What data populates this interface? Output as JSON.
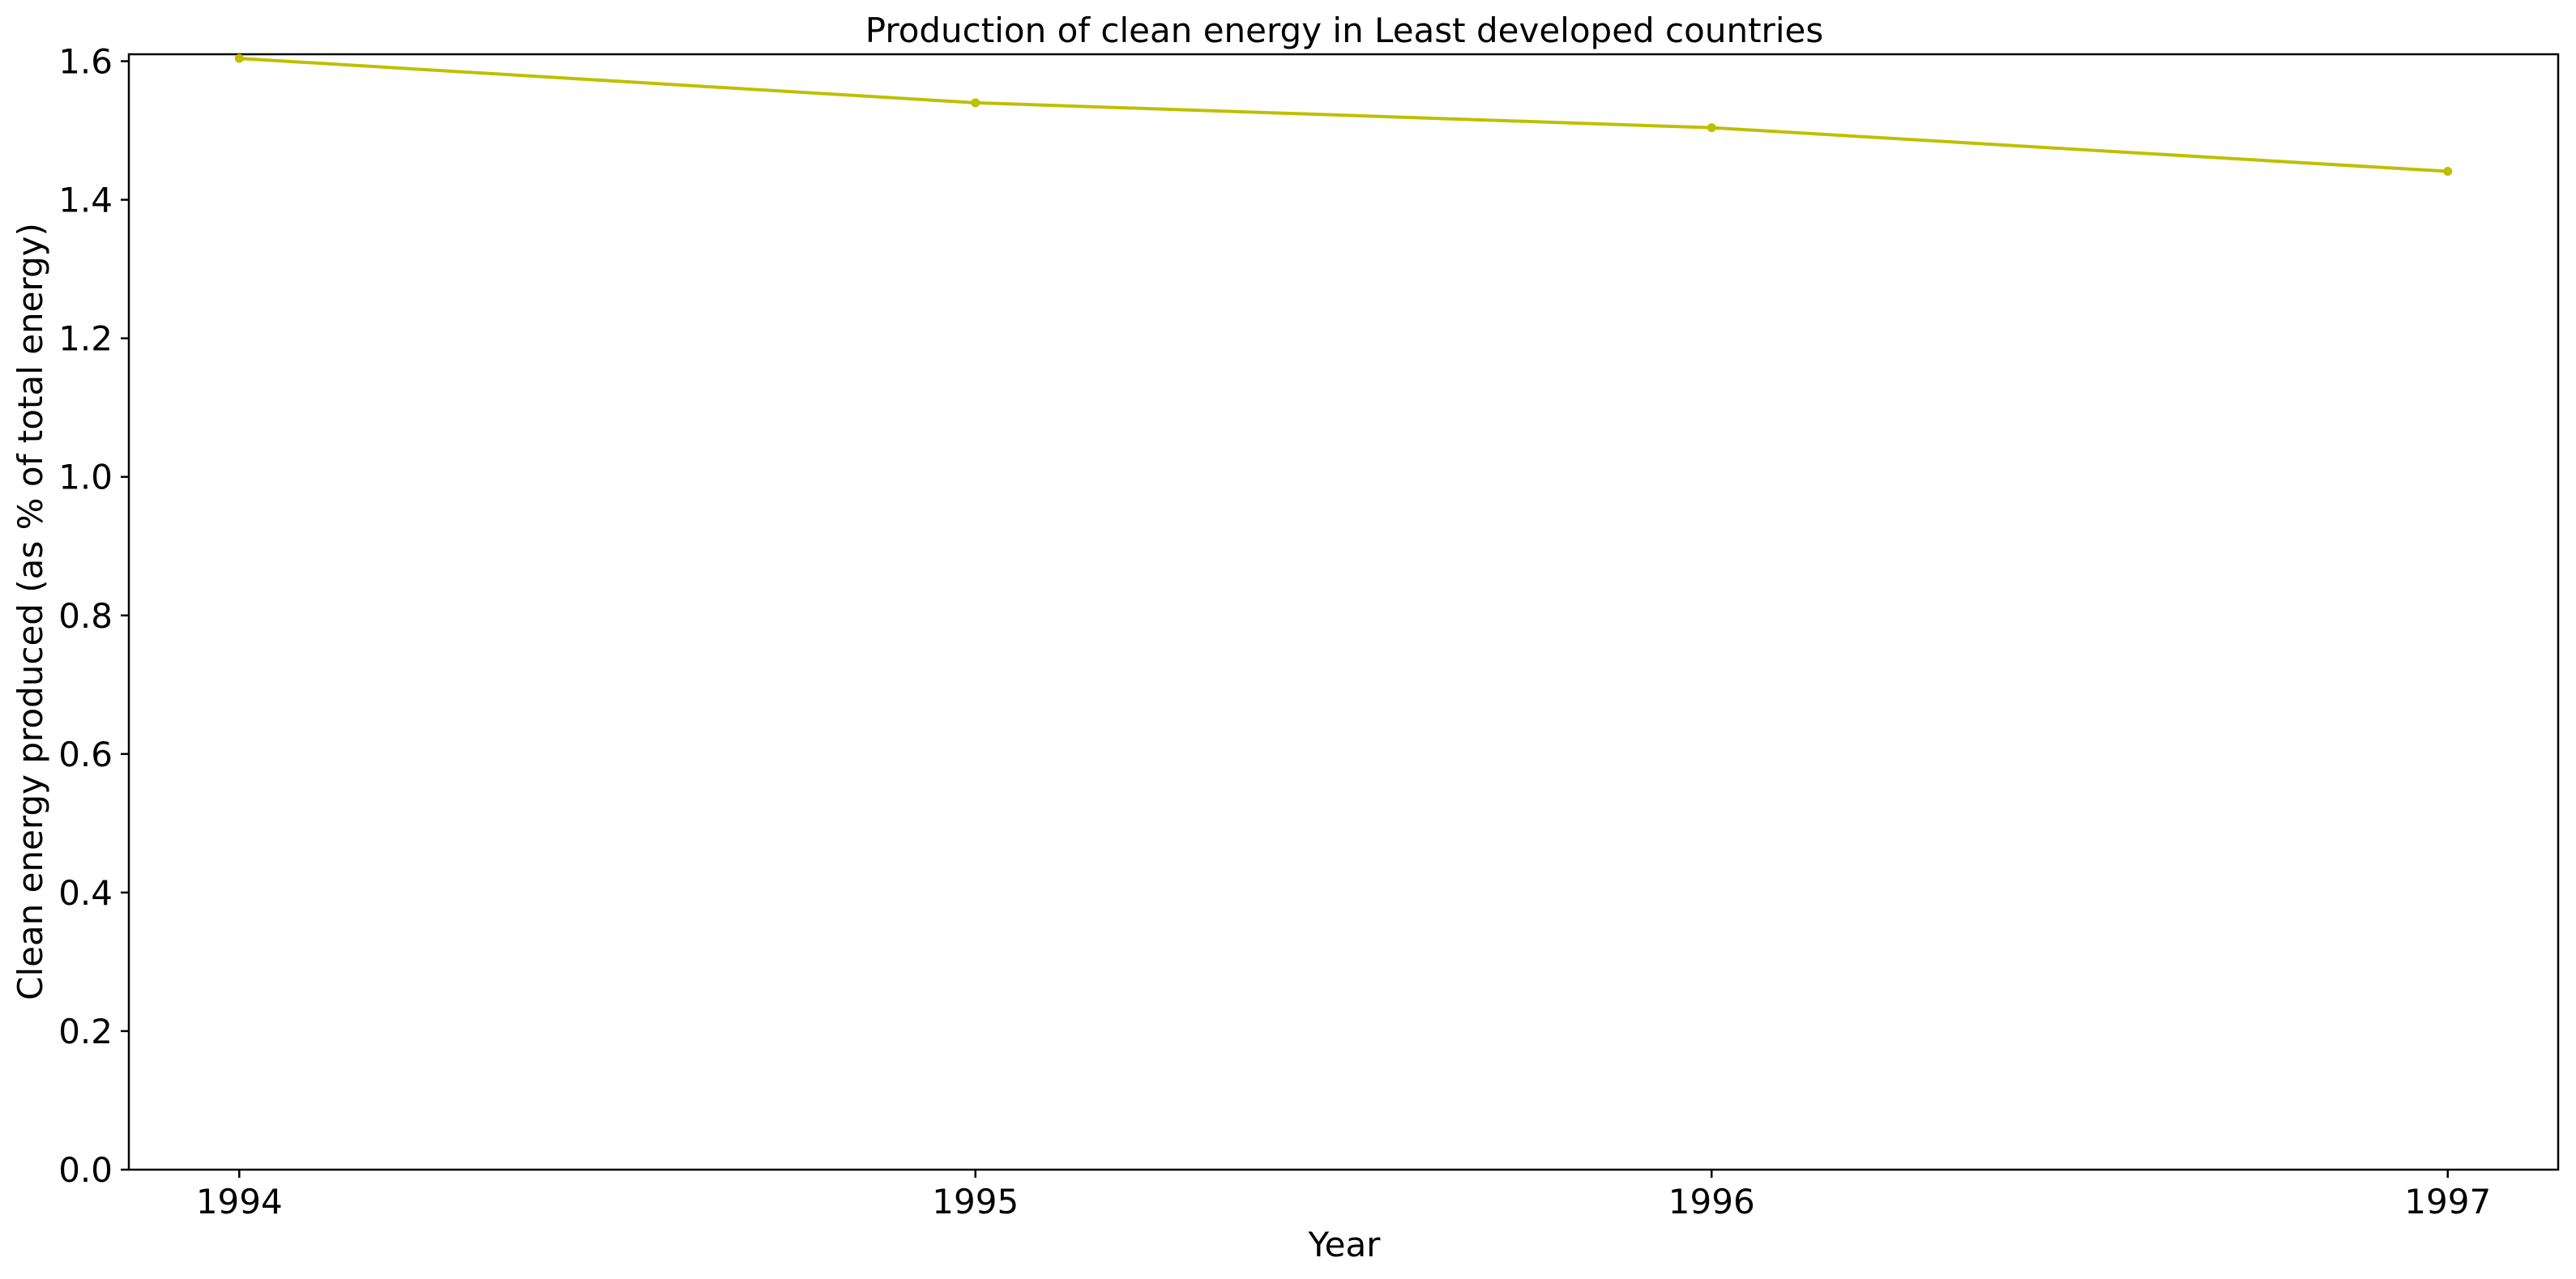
{
  "chart_data": {
    "type": "line",
    "title": "Production of clean energy in Least developed countries",
    "xlabel": "Year",
    "ylabel": "Clean energy produced (as % of total energy)",
    "x": [
      1994,
      1995,
      1996,
      1997
    ],
    "x_tick_labels": [
      "1994",
      "1995",
      "1996",
      "1997"
    ],
    "y_ticks": [
      0.0,
      0.2,
      0.4,
      0.6,
      0.8,
      1.0,
      1.2,
      1.4,
      1.6
    ],
    "y_tick_labels": [
      "0.0",
      "0.2",
      "0.4",
      "0.6",
      "0.8",
      "1.0",
      "1.2",
      "1.4",
      "1.6"
    ],
    "ylim": [
      0,
      1.61
    ],
    "xlim": [
      1993.85,
      1997.15
    ],
    "grid": false,
    "series": [
      {
        "values": [
          1.604,
          1.54,
          1.504,
          1.441
        ],
        "color": "#bfbf00",
        "marker": "circle"
      }
    ]
  }
}
